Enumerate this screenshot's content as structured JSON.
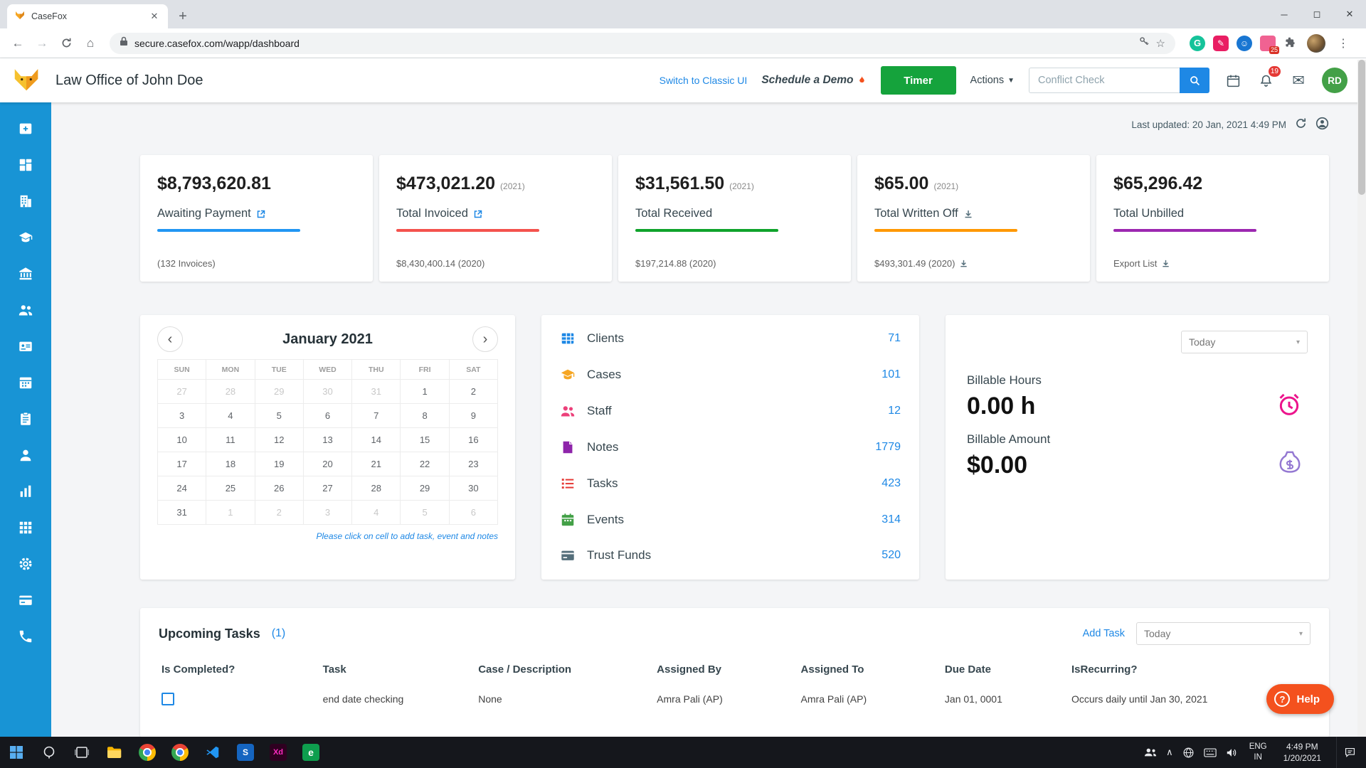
{
  "browser": {
    "tab_title": "CaseFox",
    "url": "secure.casefox.com/wapp/dashboard",
    "ext_badge": "25"
  },
  "header": {
    "firm_name": "Law Office of John Doe",
    "switch_ui": "Switch to Classic UI",
    "schedule_demo": "Schedule a Demo",
    "timer": "Timer",
    "actions": "Actions",
    "conflict_placeholder": "Conflict Check",
    "bell_count": "19",
    "avatar_initials": "RD"
  },
  "status": {
    "last_updated": "Last updated: 20 Jan, 2021 4:49 PM"
  },
  "stat_cards": [
    {
      "amount": "$8,793,620.81",
      "year": "",
      "label": "Awaiting Payment",
      "bar_color": "#2196f3",
      "footnote": "(132 Invoices)"
    },
    {
      "amount": "$473,021.20",
      "year": "(2021)",
      "label": "Total Invoiced",
      "bar_color": "#f4524d",
      "footnote": "$8,430,400.14 (2020)"
    },
    {
      "amount": "$31,561.50",
      "year": "(2021)",
      "label": "Total Received",
      "bar_color": "#0fa32b",
      "footnote": "$197,214.88 (2020)"
    },
    {
      "amount": "$65.00",
      "year": "(2021)",
      "label": "Total Written Off",
      "bar_color": "#ff9800",
      "footnote": "$493,301.49 (2020)"
    },
    {
      "amount": "$65,296.42",
      "year": "",
      "label": "Total Unbilled",
      "bar_color": "#9c27b0",
      "footnote": "Export List"
    }
  ],
  "calendar": {
    "month": "January 2021",
    "days": [
      "SUN",
      "MON",
      "TUE",
      "WED",
      "THU",
      "FRI",
      "SAT"
    ],
    "cells": [
      {
        "d": "27",
        "m": true
      },
      {
        "d": "28",
        "m": true
      },
      {
        "d": "29",
        "m": true
      },
      {
        "d": "30",
        "m": true
      },
      {
        "d": "31",
        "m": true
      },
      {
        "d": "1",
        "m": false
      },
      {
        "d": "2",
        "m": false
      },
      {
        "d": "3",
        "m": false
      },
      {
        "d": "4",
        "m": false
      },
      {
        "d": "5",
        "m": false
      },
      {
        "d": "6",
        "m": false
      },
      {
        "d": "7",
        "m": false
      },
      {
        "d": "8",
        "m": false
      },
      {
        "d": "9",
        "m": false
      },
      {
        "d": "10",
        "m": false
      },
      {
        "d": "11",
        "m": false
      },
      {
        "d": "12",
        "m": false
      },
      {
        "d": "13",
        "m": false
      },
      {
        "d": "14",
        "m": false
      },
      {
        "d": "15",
        "m": false
      },
      {
        "d": "16",
        "m": false
      },
      {
        "d": "17",
        "m": false
      },
      {
        "d": "18",
        "m": false
      },
      {
        "d": "19",
        "m": false
      },
      {
        "d": "20",
        "m": false
      },
      {
        "d": "21",
        "m": false
      },
      {
        "d": "22",
        "m": false
      },
      {
        "d": "23",
        "m": false
      },
      {
        "d": "24",
        "m": false
      },
      {
        "d": "25",
        "m": false
      },
      {
        "d": "26",
        "m": false
      },
      {
        "d": "27",
        "m": false
      },
      {
        "d": "28",
        "m": false
      },
      {
        "d": "29",
        "m": false
      },
      {
        "d": "30",
        "m": false
      },
      {
        "d": "31",
        "m": false
      },
      {
        "d": "1",
        "m": true
      },
      {
        "d": "2",
        "m": true
      },
      {
        "d": "3",
        "m": true
      },
      {
        "d": "4",
        "m": true
      },
      {
        "d": "5",
        "m": true
      },
      {
        "d": "6",
        "m": true
      }
    ],
    "hint": "Please click on cell to add task, event and notes"
  },
  "counts": [
    {
      "label": "Clients",
      "value": "71",
      "color": "#1e88e5"
    },
    {
      "label": "Cases",
      "value": "101",
      "color": "#f6a623"
    },
    {
      "label": "Staff",
      "value": "12",
      "color": "#ec407a"
    },
    {
      "label": "Notes",
      "value": "1779",
      "color": "#8e24aa"
    },
    {
      "label": "Tasks",
      "value": "423",
      "color": "#e53935"
    },
    {
      "label": "Events",
      "value": "314",
      "color": "#43a047"
    },
    {
      "label": "Trust Funds",
      "value": "520",
      "color": "#546e7a"
    }
  ],
  "billable": {
    "range": "Today",
    "hours_label": "Billable Hours",
    "hours_value": "0.00 h",
    "amount_label": "Billable Amount",
    "amount_value": "$0.00"
  },
  "tasks": {
    "title": "Upcoming Tasks",
    "count": "(1)",
    "add_task": "Add Task",
    "range": "Today",
    "headers": [
      "Is Completed?",
      "Task",
      "Case / Description",
      "Assigned By",
      "Assigned To",
      "Due Date",
      "IsRecurring?"
    ],
    "rows": [
      {
        "task": "end date checking",
        "case_desc": "None",
        "assigned_by": "Amra Pali (AP)",
        "assigned_to": "Amra Pali (AP)",
        "due_date": "Jan 01, 0001",
        "recurring": "Occurs daily until Jan 30, 2021"
      }
    ]
  },
  "help": {
    "label": "Help"
  },
  "taskbar": {
    "lang": "ENG",
    "region": "IN",
    "time": "4:49 PM",
    "date": "1/20/2021"
  }
}
